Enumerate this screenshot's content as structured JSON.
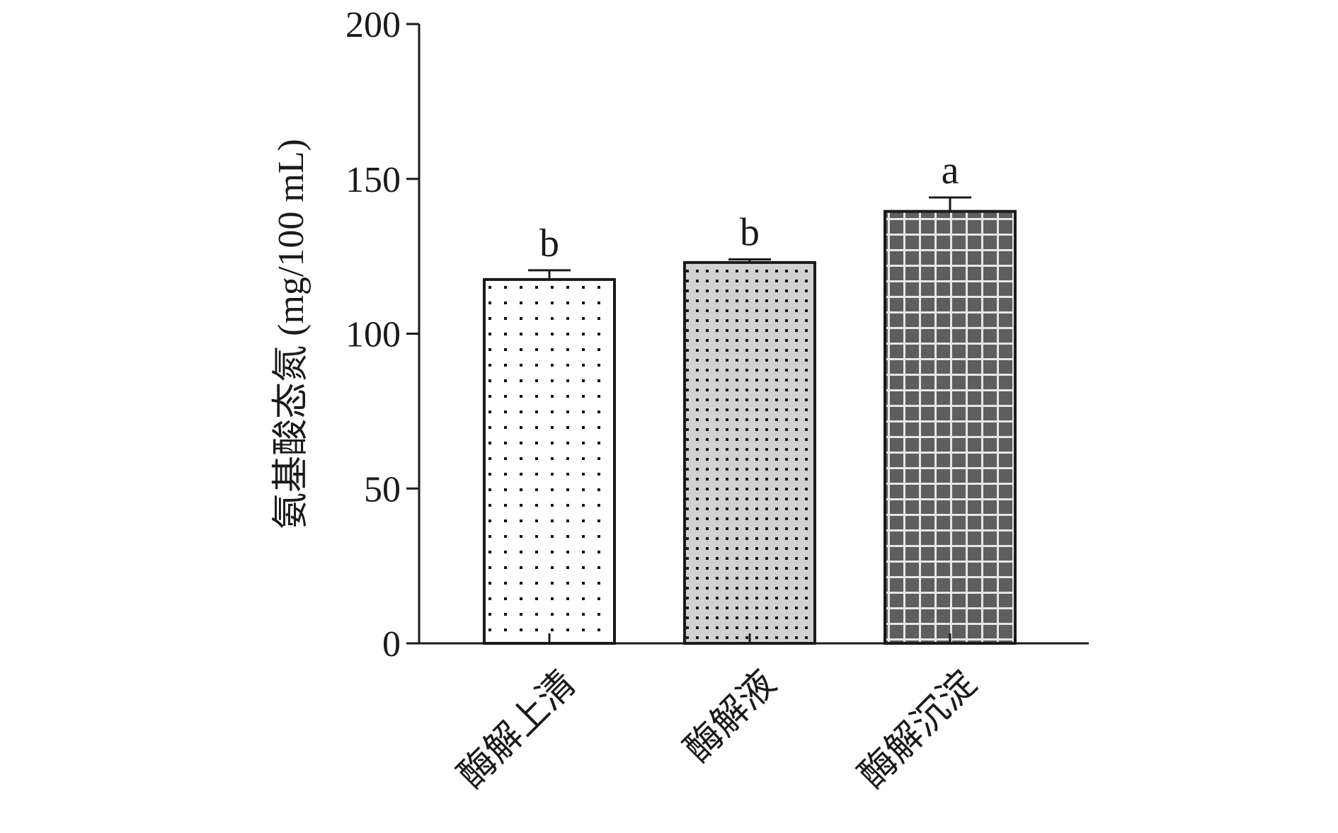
{
  "chart_data": {
    "type": "bar",
    "title": "",
    "xlabel": "",
    "ylabel": "氨基酸态氮 (mg/100 mL)",
    "ylim": [
      0,
      200
    ],
    "yticks": [
      0,
      50,
      100,
      150,
      200
    ],
    "categories": [
      "酶解上清",
      "酶解液",
      "酶解沉淀"
    ],
    "values": [
      117.5,
      123,
      139.5
    ],
    "errors": [
      3,
      1,
      4.5
    ],
    "significance": [
      "b",
      "b",
      "a"
    ],
    "bar_fills": [
      "dots-sparse",
      "dots-dense-gray",
      "grid-dark"
    ],
    "grid": false,
    "legend": "none"
  }
}
